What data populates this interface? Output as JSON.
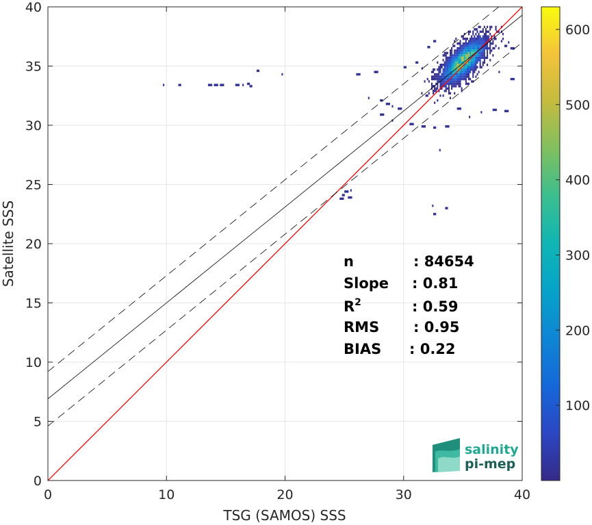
{
  "chart_data": {
    "type": "heatmap",
    "xlabel": "TSG (SAMOS) SSS",
    "ylabel": "Satellite SSS",
    "xlim": [
      0,
      40
    ],
    "ylim": [
      0,
      40
    ],
    "x_ticks": [
      0,
      10,
      20,
      30,
      40
    ],
    "y_ticks": [
      0,
      5,
      10,
      15,
      20,
      25,
      30,
      35,
      40
    ],
    "grid": true,
    "colorbar": {
      "range": [
        0,
        630
      ],
      "ticks": [
        100,
        200,
        300,
        400,
        500,
        600
      ],
      "colormap": "parula"
    },
    "lines": {
      "identity": {
        "slope": 1,
        "intercept": 0,
        "color": "#ff0000"
      },
      "fit": {
        "slope": 0.81,
        "intercept": 6.9,
        "color": "#000000"
      },
      "fit_bounds": {
        "offset": 2.3,
        "color": "#000000"
      }
    },
    "stats": [
      {
        "label": "n",
        "sup": "",
        "value": ": 84654"
      },
      {
        "label": "Slope",
        "sup": "",
        "value": ": 0.81"
      },
      {
        "label": "R",
        "sup": "2",
        "value": ": 0.59"
      },
      {
        "label": "RMS",
        "sup": "",
        "value": ": 0.95"
      },
      {
        "label": "BIAS",
        "sup": "",
        "value": ": 0.22"
      }
    ],
    "density_core": {
      "x": 35.0,
      "y": 35.3,
      "peak_count": 630
    },
    "scatter_bins": [
      [
        9.7,
        33.3
      ],
      [
        11.0,
        33.3
      ],
      [
        13.5,
        33.3
      ],
      [
        14.0,
        33.3
      ],
      [
        14.5,
        33.3
      ],
      [
        15.8,
        33.3
      ],
      [
        16.4,
        33.3
      ],
      [
        16.8,
        33.4
      ],
      [
        17.0,
        33.2
      ],
      [
        17.6,
        34.5
      ],
      [
        19.7,
        34.2
      ],
      [
        25.0,
        24.3
      ],
      [
        25.5,
        24.4
      ],
      [
        24.8,
        24.0
      ],
      [
        25.3,
        23.8
      ],
      [
        24.6,
        23.7
      ],
      [
        26.0,
        34.2
      ],
      [
        27.5,
        34.4
      ],
      [
        27.0,
        32.2
      ],
      [
        28.0,
        32.0
      ],
      [
        28.5,
        31.7
      ],
      [
        29.0,
        31.5
      ],
      [
        29.5,
        31.3
      ],
      [
        28.0,
        30.8
      ],
      [
        29.0,
        30.3
      ],
      [
        30.5,
        30.0
      ],
      [
        31.5,
        29.8
      ],
      [
        32.5,
        29.7
      ],
      [
        33.5,
        29.8
      ],
      [
        34.5,
        31.3
      ],
      [
        35.5,
        30.6
      ],
      [
        36.5,
        31.0
      ],
      [
        37.5,
        31.2
      ],
      [
        38.5,
        31.1
      ],
      [
        33.0,
        27.8
      ],
      [
        32.4,
        23.1
      ],
      [
        33.5,
        22.9
      ],
      [
        32.5,
        22.4
      ],
      [
        38.5,
        36.6
      ],
      [
        39.0,
        36.4
      ],
      [
        38.8,
        36.9
      ],
      [
        37.8,
        37.8
      ],
      [
        36.0,
        38.0
      ],
      [
        38.0,
        34.4
      ],
      [
        39.0,
        33.8
      ],
      [
        30.0,
        34.8
      ],
      [
        31.0,
        35.2
      ],
      [
        31.5,
        34.7
      ],
      [
        32.0,
        36.5
      ],
      [
        32.5,
        37.0
      ]
    ]
  },
  "logo": {
    "line1": "salinity",
    "line2": "pi-mep"
  },
  "colors": {
    "accent_logo": "#1fa892",
    "identity_line": "#ff0000",
    "colormap_low": "#352a87",
    "colormap_high": "#f9fb0e"
  }
}
